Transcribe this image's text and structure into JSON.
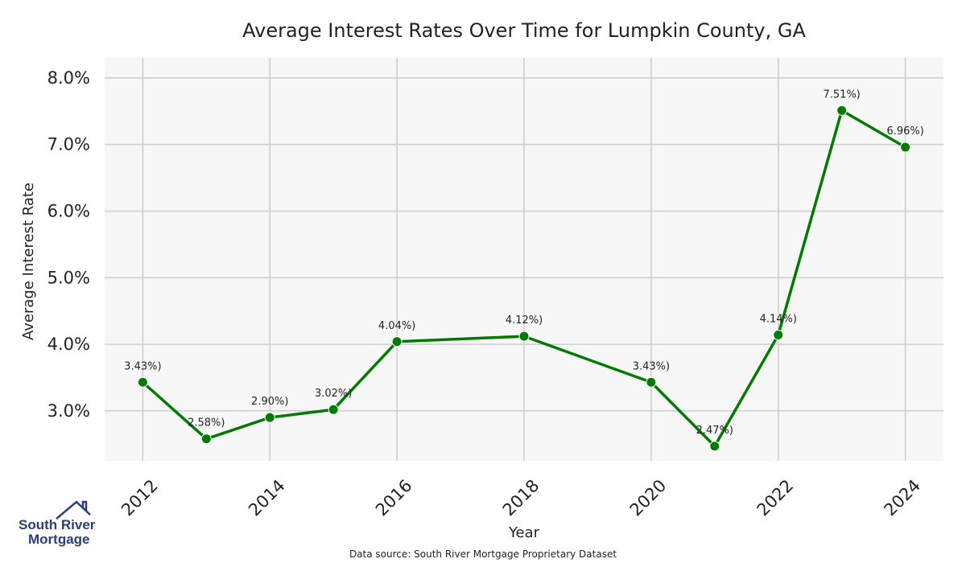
{
  "chart_data": {
    "type": "line",
    "title": "Average Interest Rates Over Time for Lumpkin County, GA",
    "xlabel": "Year",
    "ylabel": "Average Interest Rate",
    "x": [
      2012,
      2013,
      2014,
      2015,
      2016,
      2018,
      2020,
      2021,
      2022,
      2023,
      2024
    ],
    "series": [
      {
        "values": [
          3.43,
          2.58,
          2.9,
          3.02,
          4.04,
          4.12,
          3.43,
          2.47,
          4.14,
          7.51,
          6.96
        ],
        "labels": [
          "3.43%)",
          "2.58%)",
          "2.90%)",
          "3.02%)",
          "4.04%)",
          "4.12%)",
          "3.43%)",
          "2.47%)",
          "4.14%)",
          "7.51%)",
          "6.96%)"
        ],
        "color": "#007a00"
      }
    ],
    "xticks": [
      "2012",
      "2014",
      "2016",
      "2018",
      "2020",
      "2022",
      "2024"
    ],
    "yticks": [
      "3.0%",
      "4.0%",
      "5.0%",
      "6.0%",
      "7.0%",
      "8.0%"
    ],
    "xlim": [
      2011.4,
      2024.6
    ],
    "ylim": [
      2.25,
      8.3
    ],
    "grid": true,
    "background": "#f7f7f7"
  },
  "footer": {
    "source": "Data source: South River Mortgage Proprietary Dataset"
  },
  "logo": {
    "line1": "South River",
    "line2": "Mortgage"
  }
}
